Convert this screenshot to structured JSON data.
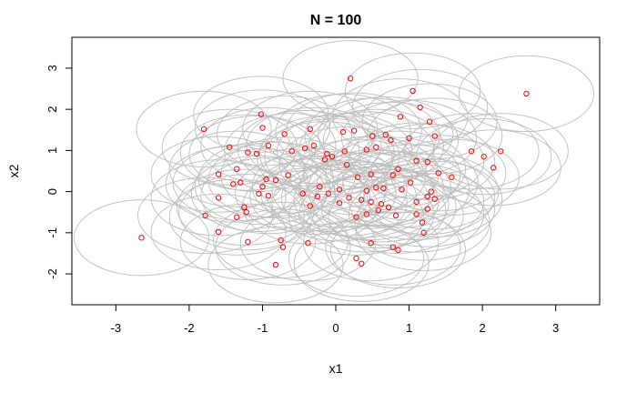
{
  "chart_data": {
    "type": "scatter",
    "title": "N = 100",
    "xlabel": "x1",
    "ylabel": "x2",
    "xlim": [
      -3.6,
      3.6
    ],
    "ylim": [
      -2.75,
      3.75
    ],
    "xticks": [
      -3,
      -2,
      -1,
      0,
      1,
      2,
      3
    ],
    "yticks": [
      -2,
      -1,
      0,
      1,
      2,
      3
    ],
    "circle_radius": 0.92,
    "grid": false,
    "legend": "none",
    "colors": {
      "points": "#ff0000",
      "circles": "#bebebe",
      "axes": "#000000"
    },
    "points": [
      [
        -2.65,
        -1.12
      ],
      [
        2.6,
        2.38
      ],
      [
        0.2,
        2.75
      ],
      [
        1.05,
        2.45
      ],
      [
        1.15,
        2.05
      ],
      [
        1.28,
        1.7
      ],
      [
        0.88,
        1.82
      ],
      [
        -1.8,
        1.52
      ],
      [
        -1.02,
        1.88
      ],
      [
        -1.0,
        1.55
      ],
      [
        -0.35,
        1.52
      ],
      [
        0.1,
        1.45
      ],
      [
        0.25,
        1.48
      ],
      [
        -0.7,
        1.4
      ],
      [
        0.5,
        1.35
      ],
      [
        0.68,
        1.38
      ],
      [
        0.75,
        1.25
      ],
      [
        1.0,
        1.3
      ],
      [
        1.35,
        1.35
      ],
      [
        -0.42,
        1.05
      ],
      [
        -0.3,
        1.12
      ],
      [
        -0.12,
        0.92
      ],
      [
        0.12,
        0.98
      ],
      [
        0.42,
        1.02
      ],
      [
        0.55,
        1.08
      ],
      [
        -0.6,
        0.98
      ],
      [
        -0.92,
        1.12
      ],
      [
        -1.45,
        1.08
      ],
      [
        -1.2,
        0.95
      ],
      [
        -1.08,
        0.92
      ],
      [
        -0.05,
        0.85
      ],
      [
        -0.15,
        0.78
      ],
      [
        1.85,
        0.98
      ],
      [
        2.02,
        0.85
      ],
      [
        2.25,
        0.98
      ],
      [
        2.15,
        0.58
      ],
      [
        1.1,
        0.75
      ],
      [
        1.25,
        0.72
      ],
      [
        0.15,
        0.65
      ],
      [
        0.85,
        0.55
      ],
      [
        -1.35,
        0.55
      ],
      [
        -1.6,
        0.42
      ],
      [
        -0.65,
        0.4
      ],
      [
        -0.95,
        0.3
      ],
      [
        0.3,
        0.35
      ],
      [
        0.48,
        0.42
      ],
      [
        0.78,
        0.4
      ],
      [
        1.02,
        0.22
      ],
      [
        1.4,
        0.45
      ],
      [
        1.58,
        0.35
      ],
      [
        -1.4,
        0.18
      ],
      [
        -1.3,
        0.22
      ],
      [
        -1.0,
        0.12
      ],
      [
        -0.82,
        0.28
      ],
      [
        -0.22,
        0.12
      ],
      [
        0.05,
        0.05
      ],
      [
        -0.1,
        -0.05
      ],
      [
        0.42,
        0.02
      ],
      [
        0.55,
        0.1
      ],
      [
        0.65,
        0.08
      ],
      [
        0.9,
        0.05
      ],
      [
        1.3,
        0.0
      ],
      [
        1.25,
        -0.12
      ],
      [
        -1.6,
        -0.15
      ],
      [
        -1.05,
        -0.05
      ],
      [
        -0.92,
        -0.1
      ],
      [
        -0.45,
        -0.05
      ],
      [
        -0.25,
        -0.12
      ],
      [
        0.18,
        -0.15
      ],
      [
        0.35,
        -0.2
      ],
      [
        0.48,
        -0.25
      ],
      [
        0.62,
        -0.3
      ],
      [
        0.72,
        -0.38
      ],
      [
        1.1,
        -0.25
      ],
      [
        1.35,
        -0.18
      ],
      [
        -1.25,
        -0.38
      ],
      [
        -1.22,
        -0.5
      ],
      [
        -1.35,
        -0.62
      ],
      [
        -0.35,
        -0.35
      ],
      [
        0.05,
        -0.28
      ],
      [
        -1.78,
        -0.58
      ],
      [
        0.28,
        -0.62
      ],
      [
        0.42,
        -0.55
      ],
      [
        0.58,
        -0.45
      ],
      [
        0.82,
        -0.58
      ],
      [
        1.25,
        -0.42
      ],
      [
        -1.6,
        -0.98
      ],
      [
        -1.2,
        -1.22
      ],
      [
        -0.75,
        -1.18
      ],
      [
        -0.72,
        -1.35
      ],
      [
        -0.38,
        -1.25
      ],
      [
        0.48,
        -1.25
      ],
      [
        0.78,
        -1.35
      ],
      [
        0.85,
        -1.42
      ],
      [
        1.18,
        -0.75
      ],
      [
        1.2,
        -1.0
      ],
      [
        -0.82,
        -1.78
      ],
      [
        0.28,
        -1.62
      ],
      [
        0.35,
        -1.75
      ],
      [
        1.1,
        -0.55
      ]
    ]
  }
}
